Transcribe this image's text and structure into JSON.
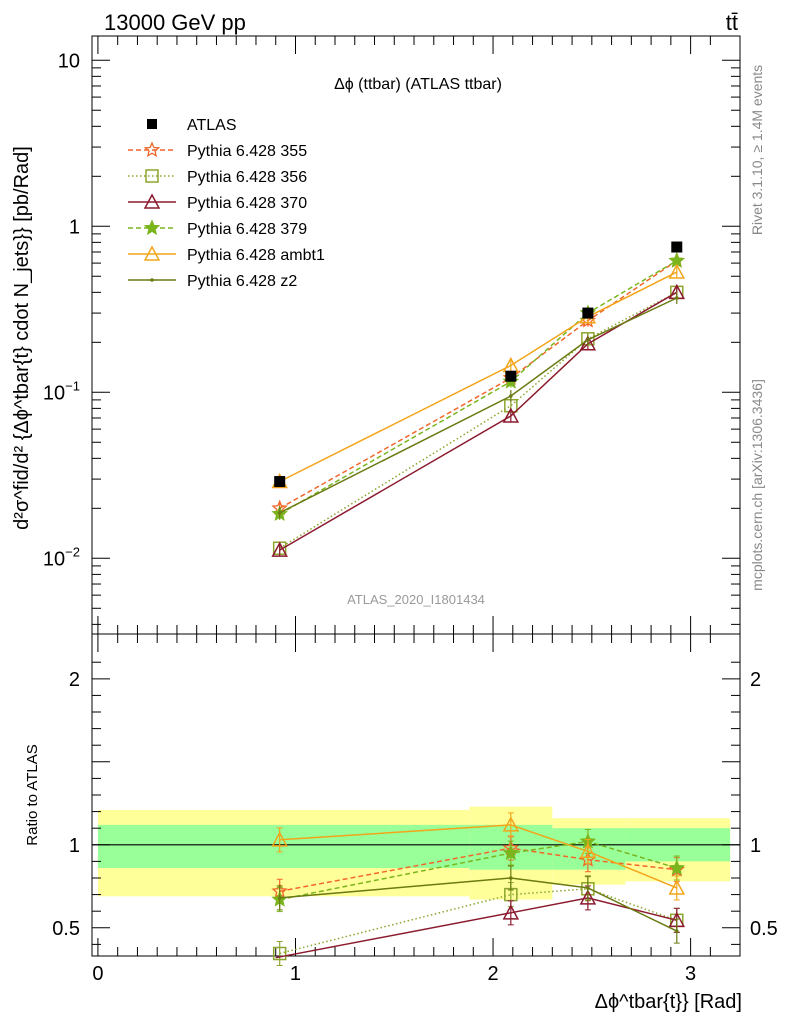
{
  "header": {
    "left": "13000 GeV pp",
    "right": "tt̄"
  },
  "side_labels": {
    "rivet": "Rivet 3.1.10, ≥ 1.4M events",
    "mcplots": "mcplots.cern.ch [arXiv:1306.3436]"
  },
  "chart_data": {
    "title": "Δϕ (ttbar) (ATLAS ttbar)",
    "watermark": "ATLAS_2020_I1801434",
    "ylabel": "d²σ^fid/d² {Δϕ^tbar{t} cdot N_jets}} [pb/Rad]",
    "xlabel": "Δϕ^tbar{t}} [Rad]",
    "ratio_ylabel": "Ratio to ATLAS",
    "main": {
      "type": "line",
      "yscale": "log",
      "xlim": [
        -0.03,
        3.25
      ],
      "ylim": [
        0.0035,
        14
      ],
      "yticks": [
        {
          "v": 10,
          "label": "10"
        },
        {
          "v": 1,
          "label": "1"
        },
        {
          "v": 0.1,
          "label": "10^-1"
        },
        {
          "v": 0.01,
          "label": "10^-2"
        }
      ],
      "xticks": [
        0,
        1,
        2,
        3
      ],
      "data": {
        "name": "ATLAS",
        "x": [
          0.92,
          2.09,
          2.48,
          2.93
        ],
        "y": [
          0.029,
          0.125,
          0.3,
          0.75
        ]
      },
      "series": [
        {
          "name": "Pythia 6.428 355",
          "color": "#f2672a",
          "dash": "5,3",
          "marker": "star-open",
          "x": [
            0.92,
            2.09,
            2.48,
            2.93
          ],
          "y": [
            0.02,
            0.122,
            0.27,
            0.62
          ]
        },
        {
          "name": "Pythia 6.428 356",
          "color": "#8ca52e",
          "dash": "1.5,2.5",
          "marker": "square-open",
          "x": [
            0.92,
            2.09,
            2.48,
            2.93
          ],
          "y": [
            0.0115,
            0.083,
            0.21,
            0.4
          ]
        },
        {
          "name": "Pythia 6.428 370",
          "color": "#8b1a2e",
          "dash": "",
          "marker": "triangle-open",
          "x": [
            0.92,
            2.09,
            2.48,
            2.93
          ],
          "y": [
            0.0112,
            0.072,
            0.196,
            0.4
          ]
        },
        {
          "name": "Pythia 6.428 379",
          "color": "#7ab51d",
          "dash": "5,3",
          "marker": "star-filled",
          "x": [
            0.92,
            2.09,
            2.48,
            2.93
          ],
          "y": [
            0.0185,
            0.116,
            0.3,
            0.62
          ]
        },
        {
          "name": "Pythia 6.428 ambt1",
          "color": "#f2a51a",
          "dash": "",
          "marker": "triangle-open",
          "x": [
            0.92,
            2.09,
            2.48,
            2.93
          ],
          "y": [
            0.029,
            0.145,
            0.285,
            0.53
          ]
        },
        {
          "name": "Pythia 6.428 z2",
          "color": "#6b7a12",
          "dash": "",
          "marker": "dot",
          "x": [
            0.92,
            2.09,
            2.48,
            2.93
          ],
          "y": [
            0.0188,
            0.095,
            0.207,
            0.37
          ]
        }
      ]
    },
    "ratio": {
      "type": "line",
      "xlim": [
        -0.03,
        3.25
      ],
      "ylim": [
        0.33,
        2.27
      ],
      "yticks": [
        0.5,
        1,
        2
      ],
      "bands": [
        {
          "x0": 0.0,
          "x1": 1.88,
          "green": [
            0.86,
            1.12
          ],
          "yellow": [
            0.69,
            1.21
          ]
        },
        {
          "x0": 1.88,
          "x1": 2.3,
          "green": [
            0.85,
            1.12
          ],
          "yellow": [
            0.67,
            1.23
          ]
        },
        {
          "x0": 2.3,
          "x1": 2.67,
          "green": [
            0.85,
            1.1
          ],
          "yellow": [
            0.76,
            1.16
          ]
        },
        {
          "x0": 2.67,
          "x1": 3.2,
          "green": [
            0.9,
            1.1
          ],
          "yellow": [
            0.78,
            1.16
          ]
        }
      ],
      "series": [
        {
          "name": "Pythia 6.428 355",
          "x": [
            0.92,
            2.09,
            2.48,
            2.93
          ],
          "y": [
            0.72,
            0.98,
            0.91,
            0.85
          ]
        },
        {
          "name": "Pythia 6.428 356",
          "x": [
            0.92,
            2.09,
            2.48,
            2.93
          ],
          "y": [
            0.345,
            0.7,
            0.735,
            0.545
          ]
        },
        {
          "name": "Pythia 6.428 370",
          "x": [
            0.9,
            2.09,
            2.48,
            2.93
          ],
          "y": [
            0.32,
            0.59,
            0.68,
            0.545
          ]
        },
        {
          "name": "Pythia 6.428 379",
          "x": [
            0.92,
            2.09,
            2.48,
            2.93
          ],
          "y": [
            0.67,
            0.95,
            1.02,
            0.86
          ]
        },
        {
          "name": "Pythia 6.428 ambt1",
          "x": [
            0.92,
            2.09,
            2.48,
            2.93
          ],
          "y": [
            1.03,
            1.12,
            0.96,
            0.74
          ]
        },
        {
          "name": "Pythia 6.428 z2",
          "x": [
            0.92,
            2.09,
            2.48,
            2.93
          ],
          "y": [
            0.68,
            0.8,
            0.74,
            0.48
          ]
        }
      ]
    }
  }
}
